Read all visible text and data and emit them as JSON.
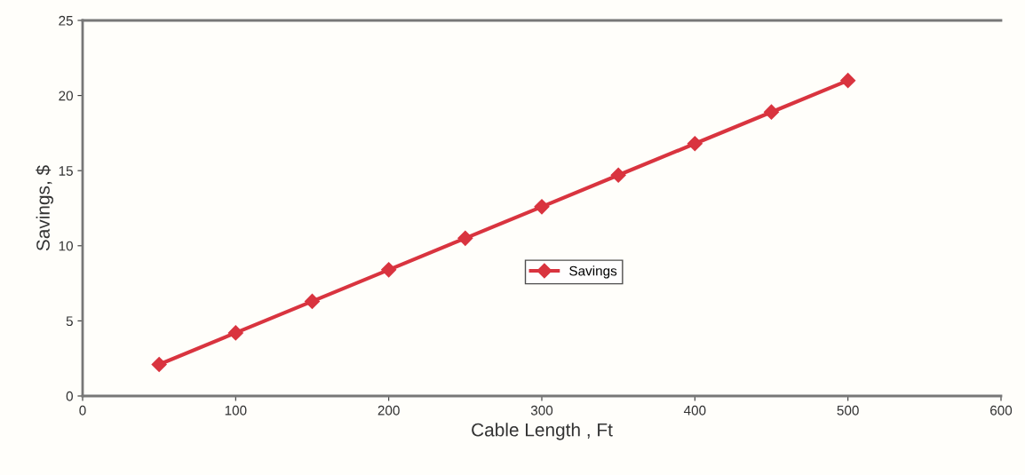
{
  "chart_data": {
    "type": "line",
    "xlabel": "Cable Length , Ft",
    "ylabel": "Savings, $",
    "x": [
      50,
      100,
      150,
      200,
      250,
      300,
      350,
      400,
      450,
      500
    ],
    "series": [
      {
        "name": "Savings",
        "color": "#d9343f",
        "values": [
          2.1,
          4.2,
          6.3,
          8.4,
          10.5,
          12.6,
          14.7,
          16.8,
          18.9,
          21.0
        ]
      }
    ],
    "xlim": [
      0,
      600
    ],
    "xticks": [
      0,
      100,
      200,
      300,
      400,
      500,
      600
    ],
    "ylim": [
      0,
      25
    ],
    "yticks": [
      0,
      5,
      10,
      15,
      20,
      25
    ],
    "grid": false,
    "legend": "center",
    "marker": "diamond",
    "line_style": "solid"
  }
}
